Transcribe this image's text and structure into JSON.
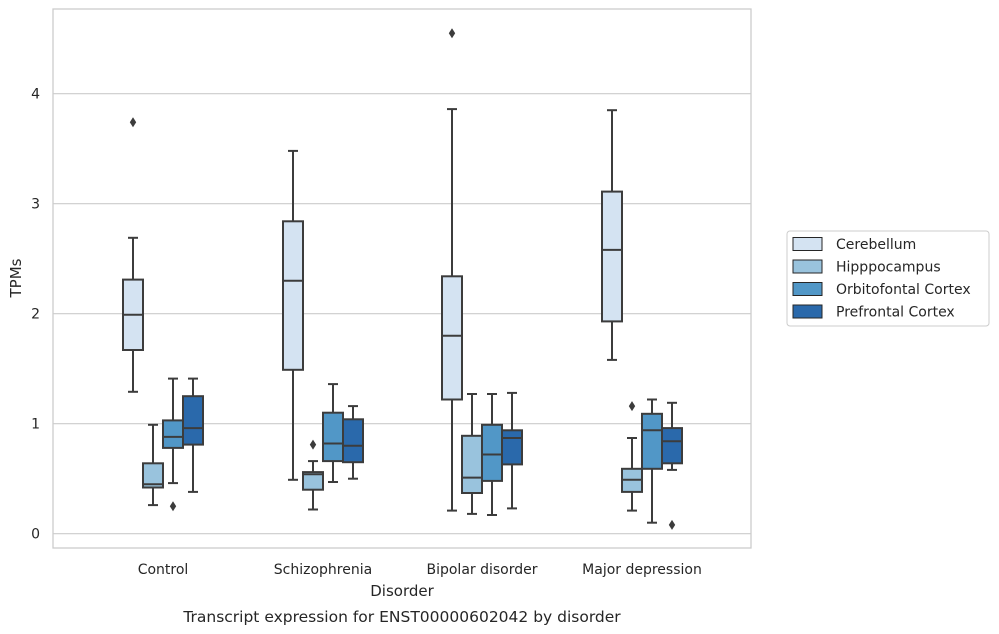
{
  "chart_data": {
    "type": "boxplot",
    "title": "",
    "caption": "Transcript expression for ENST00000602042 by disorder",
    "xlabel": "Disorder",
    "ylabel": "TPMs",
    "ylim": [
      -0.13,
      4.77
    ],
    "yticks": [
      0,
      1,
      2,
      3,
      4
    ],
    "grid": "horizontal",
    "legend_position": "right",
    "categories": [
      "Control",
      "Schizophrenia",
      "Bipolar disorder",
      "Major depression"
    ],
    "series": [
      {
        "name": "Cerebellum",
        "color": "#d4e3f2",
        "boxes": [
          {
            "whislo": 1.29,
            "q1": 1.67,
            "med": 1.99,
            "q3": 2.31,
            "whishi": 2.69,
            "fliers": [
              3.74
            ]
          },
          {
            "whislo": 0.49,
            "q1": 1.49,
            "med": 2.3,
            "q3": 2.84,
            "whishi": 3.48,
            "fliers": []
          },
          {
            "whislo": 0.21,
            "q1": 1.22,
            "med": 1.8,
            "q3": 2.34,
            "whishi": 3.86,
            "fliers": [
              4.55
            ]
          },
          {
            "whislo": 1.58,
            "q1": 1.93,
            "med": 2.58,
            "q3": 3.11,
            "whishi": 3.85,
            "fliers": []
          }
        ]
      },
      {
        "name": "Hipppocampus",
        "color": "#99c3dd",
        "boxes": [
          {
            "whislo": 0.26,
            "q1": 0.42,
            "med": 0.45,
            "q3": 0.64,
            "whishi": 0.99,
            "fliers": []
          },
          {
            "whislo": 0.22,
            "q1": 0.4,
            "med": 0.54,
            "q3": 0.56,
            "whishi": 0.66,
            "fliers": [
              0.81
            ]
          },
          {
            "whislo": 0.18,
            "q1": 0.37,
            "med": 0.51,
            "q3": 0.89,
            "whishi": 1.27,
            "fliers": []
          },
          {
            "whislo": 0.21,
            "q1": 0.38,
            "med": 0.49,
            "q3": 0.59,
            "whishi": 0.87,
            "fliers": [
              1.16
            ]
          }
        ]
      },
      {
        "name": "Orbitofontal Cortex",
        "color": "#5197c7",
        "boxes": [
          {
            "whislo": 0.46,
            "q1": 0.78,
            "med": 0.88,
            "q3": 1.03,
            "whishi": 1.41,
            "fliers": [
              0.25
            ]
          },
          {
            "whislo": 0.47,
            "q1": 0.66,
            "med": 0.82,
            "q3": 1.1,
            "whishi": 1.36,
            "fliers": []
          },
          {
            "whislo": 0.17,
            "q1": 0.48,
            "med": 0.72,
            "q3": 0.99,
            "whishi": 1.27,
            "fliers": []
          },
          {
            "whislo": 0.1,
            "q1": 0.59,
            "med": 0.94,
            "q3": 1.09,
            "whishi": 1.22,
            "fliers": []
          }
        ]
      },
      {
        "name": "Prefrontal Cortex",
        "color": "#2a69ab",
        "boxes": [
          {
            "whislo": 0.38,
            "q1": 0.81,
            "med": 0.96,
            "q3": 1.25,
            "whishi": 1.41,
            "fliers": []
          },
          {
            "whislo": 0.5,
            "q1": 0.65,
            "med": 0.8,
            "q3": 1.04,
            "whishi": 1.16,
            "fliers": []
          },
          {
            "whislo": 0.23,
            "q1": 0.63,
            "med": 0.87,
            "q3": 0.94,
            "whishi": 1.28,
            "fliers": []
          },
          {
            "whislo": 0.58,
            "q1": 0.64,
            "med": 0.84,
            "q3": 0.96,
            "whishi": 1.19,
            "fliers": [
              0.08
            ]
          }
        ]
      }
    ]
  }
}
